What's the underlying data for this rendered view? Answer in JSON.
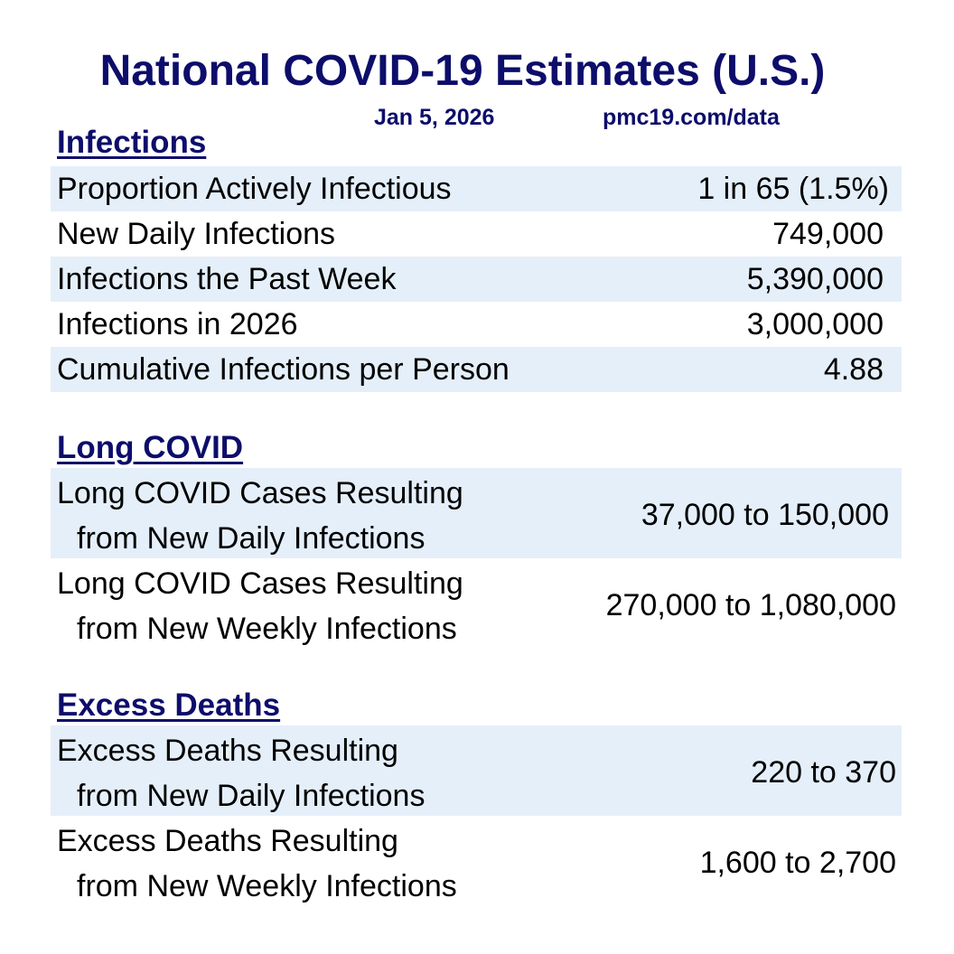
{
  "header": {
    "title": "National COVID-19 Estimates (U.S.)",
    "date": "Jan 5, 2026",
    "source": "pmc19.com/data"
  },
  "infections": {
    "heading": "Infections",
    "rows": [
      {
        "label": "Proportion Actively Infectious",
        "value": "1 in 65 (1.5%)"
      },
      {
        "label": "New Daily Infections",
        "value": "749,000"
      },
      {
        "label": "Infections the Past Week",
        "value": "5,390,000"
      },
      {
        "label": "Infections in 2026",
        "value": "3,000,000"
      },
      {
        "label": "Cumulative Infections per Person",
        "value": "4.88"
      }
    ]
  },
  "long_covid": {
    "heading": "Long COVID",
    "rows": [
      {
        "label_line1": "Long COVID Cases Resulting",
        "label_line2": "from New Daily Infections",
        "value": "37,000 to 150,000"
      },
      {
        "label_line1": "Long COVID Cases Resulting",
        "label_line2": "from New Weekly Infections",
        "value": "270,000 to 1,080,000"
      }
    ]
  },
  "excess_deaths": {
    "heading": "Excess Deaths",
    "rows": [
      {
        "label_line1": "Excess Deaths Resulting",
        "label_line2": "from New Daily Infections",
        "value": "220 to 370"
      },
      {
        "label_line1": "Excess Deaths Resulting",
        "label_line2": "from New Weekly Infections",
        "value": "1,600 to 2,700"
      }
    ]
  },
  "colors": {
    "heading_navy": "#0d0d6b",
    "row_shade": "#e5effa"
  }
}
